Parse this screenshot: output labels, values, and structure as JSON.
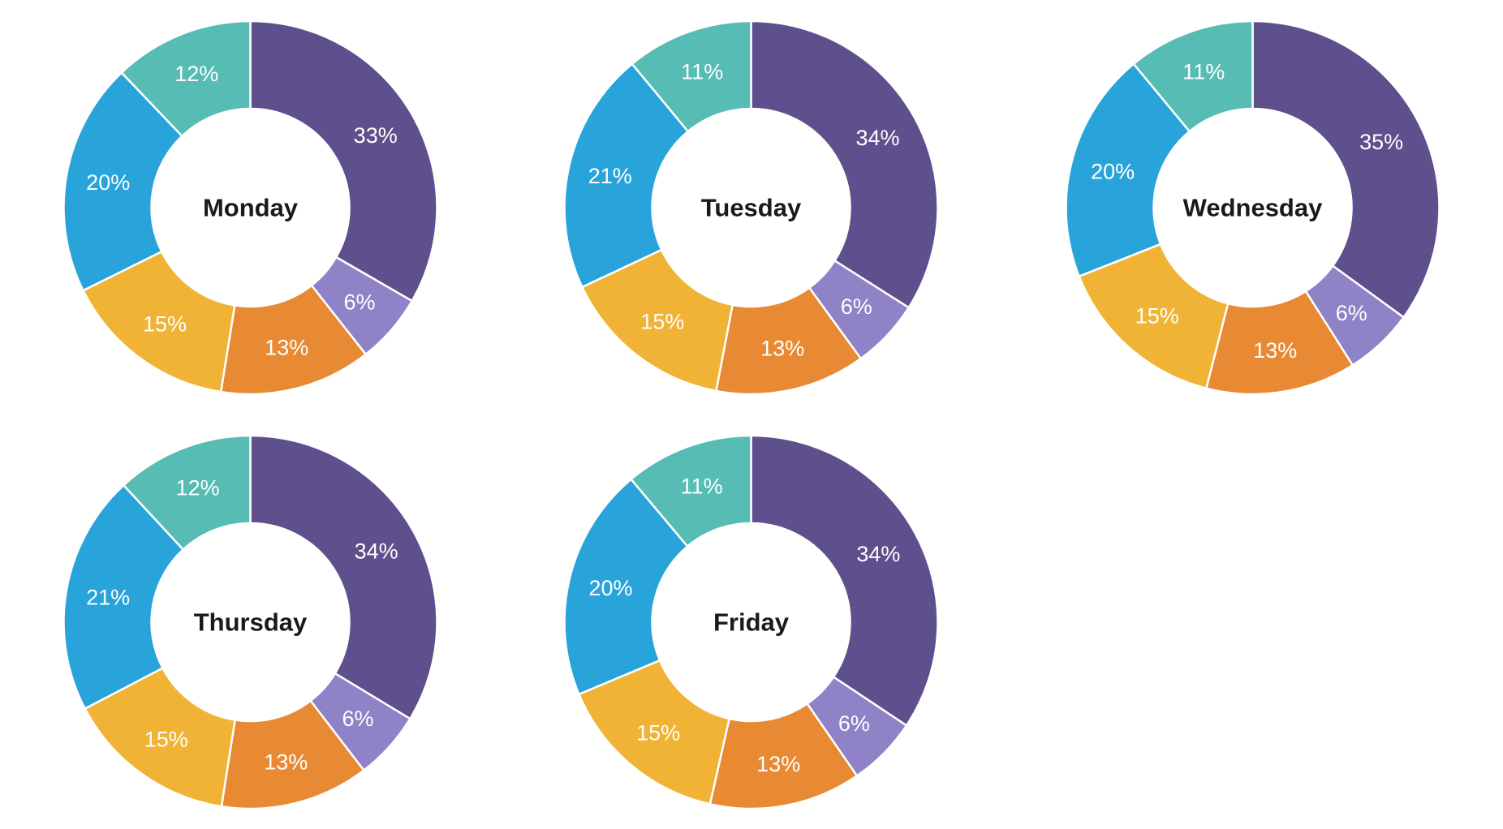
{
  "page": {
    "background": "#ffffff"
  },
  "chart_data": {
    "type": "pie",
    "subtype": "donut",
    "direction": "clockwise",
    "start_angle_deg": 0,
    "donut_hole_ratio": 0.53,
    "grid": "3 columns x 2 rows, last cell empty",
    "legend": "none",
    "segment_names": [
      "purple",
      "light-purple",
      "orange",
      "amber",
      "blue",
      "teal"
    ],
    "segment_colors": [
      "#5e4f8d",
      "#8f82c6",
      "#e78a33",
      "#f1b335",
      "#29a4db",
      "#56bcb4"
    ],
    "slice_label_color": "#ffffff",
    "title_color": "#1a1a1a",
    "charts": [
      {
        "title": "Monday",
        "values": [
          33,
          6,
          13,
          15,
          20,
          12
        ],
        "labels": [
          "33%",
          "6%",
          "13%",
          "15%",
          "20%",
          "12%"
        ]
      },
      {
        "title": "Tuesday",
        "values": [
          34,
          6,
          13,
          15,
          21,
          11
        ],
        "labels": [
          "34%",
          "6%",
          "13%",
          "15%",
          "21%",
          "11%"
        ]
      },
      {
        "title": "Wednesday",
        "values": [
          35,
          6,
          13,
          15,
          20,
          11
        ],
        "labels": [
          "35%",
          "6%",
          "13%",
          "15%",
          "20%",
          "11%"
        ]
      },
      {
        "title": "Thursday",
        "values": [
          34,
          6,
          13,
          15,
          21,
          12
        ],
        "labels": [
          "34%",
          "6%",
          "13%",
          "15%",
          "21%",
          "12%"
        ]
      },
      {
        "title": "Friday",
        "values": [
          34,
          6,
          13,
          15,
          20,
          11
        ],
        "labels": [
          "34%",
          "6%",
          "13%",
          "15%",
          "20%",
          "11%"
        ]
      }
    ]
  }
}
